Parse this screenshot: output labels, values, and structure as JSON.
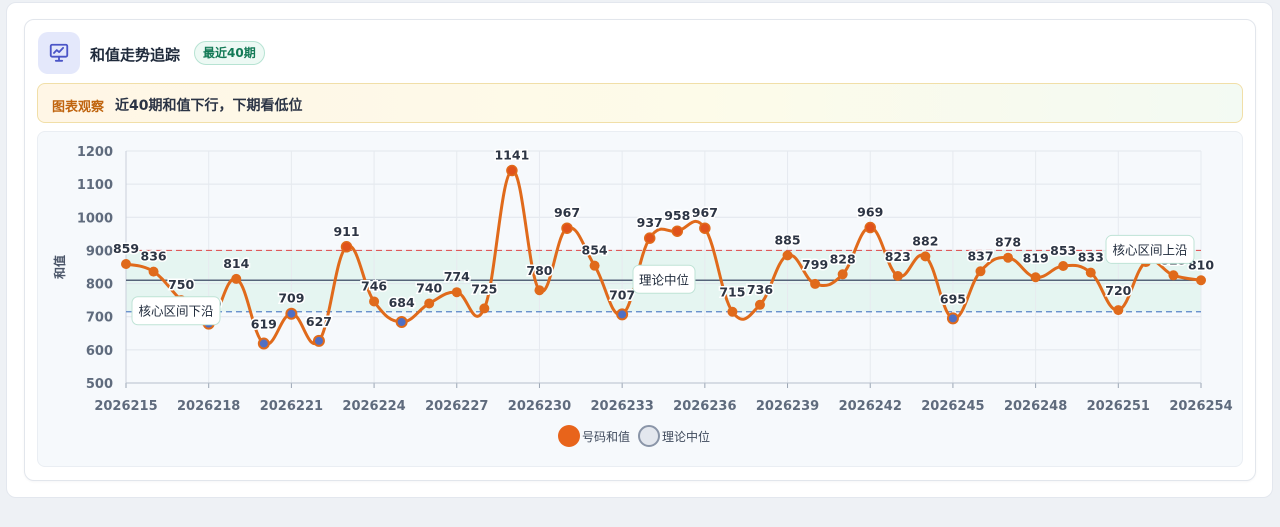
{
  "header": {
    "title": "和值走势追踪",
    "badge": "最近40期",
    "icon": "chart-trend-icon"
  },
  "insight": {
    "tag": "图表观察",
    "text": "近40期和值下行，下期看低位"
  },
  "legend": {
    "series_label": "号码和值",
    "median_label": "理论中位"
  },
  "chart_data": {
    "type": "line",
    "ylabel": "和值",
    "ylim": [
      500,
      1200
    ],
    "yticks": [
      500,
      600,
      700,
      800,
      900,
      1000,
      1100,
      1200
    ],
    "xtick_labels": [
      "2026215",
      "2026218",
      "2026221",
      "2026224",
      "2026227",
      "2026230",
      "2026233",
      "2026236",
      "2026239",
      "2026242",
      "2026245",
      "2026248",
      "2026251",
      "2026254"
    ],
    "x": [
      "2026215",
      "2026216",
      "2026217",
      "2026218",
      "2026219",
      "2026220",
      "2026221",
      "2026222",
      "2026223",
      "2026224",
      "2026225",
      "2026226",
      "2026227",
      "2026228",
      "2026229",
      "2026230",
      "2026231",
      "2026232",
      "2026233",
      "2026234",
      "2026235",
      "2026236",
      "2026237",
      "2026238",
      "2026239",
      "2026240",
      "2026241",
      "2026242",
      "2026243",
      "2026244",
      "2026245",
      "2026246",
      "2026247",
      "2026248",
      "2026249",
      "2026250",
      "2026251",
      "2026252",
      "2026253",
      "2026254"
    ],
    "series": [
      {
        "name": "号码和值",
        "values": [
          859,
          836,
          750,
          679,
          814,
          619,
          709,
          627,
          911,
          746,
          684,
          740,
          774,
          725,
          1141,
          780,
          967,
          854,
          707,
          937,
          958,
          967,
          715,
          736,
          885,
          799,
          828,
          969,
          823,
          882,
          695,
          837,
          878,
          819,
          853,
          833,
          720,
          865,
          825,
          810
        ]
      }
    ],
    "median": 810,
    "median_label": "理论中位",
    "core_band": [
      715,
      900
    ],
    "band_lower_label": "核心区间下沿",
    "band_upper_label": "核心区间上沿",
    "colors": {
      "line": "#e06a1b",
      "high_point": "#e0521b",
      "low_point": "#4f6fc4",
      "median_line": "#56647a",
      "upper_line": "#e05a5a",
      "lower_line": "#5a84c8",
      "band": "#e2f4ee"
    },
    "grid": true,
    "legend_position": "bottom-center"
  }
}
